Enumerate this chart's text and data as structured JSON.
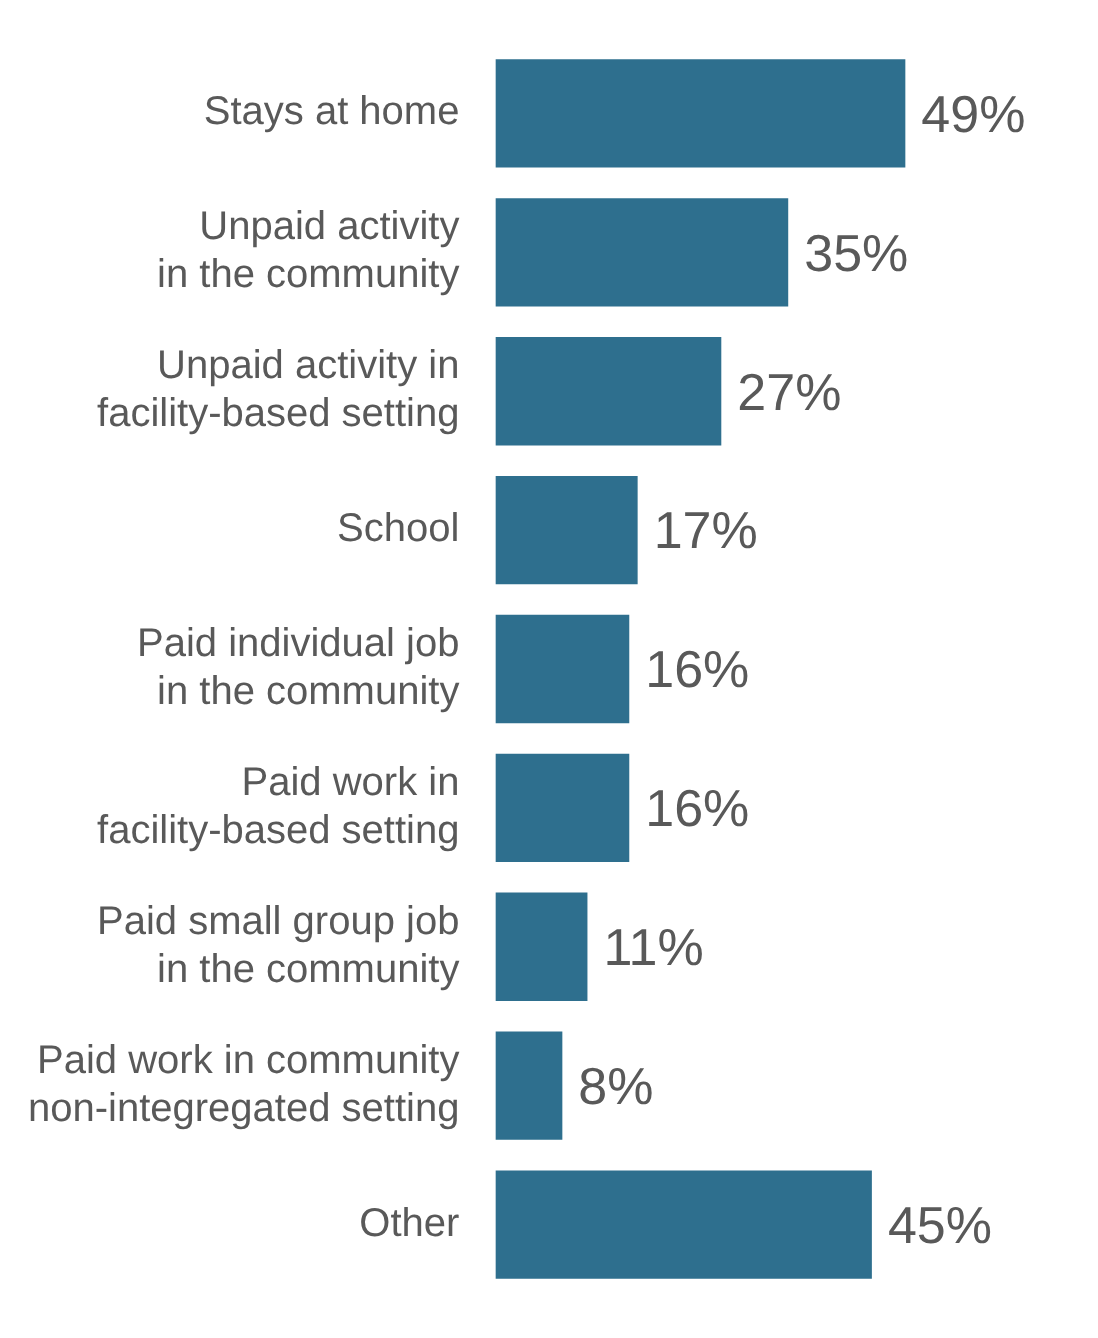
{
  "chart_data": {
    "type": "bar",
    "orientation": "horizontal",
    "categories": [
      "Stays at home",
      "Unpaid activity\nin the community",
      "Unpaid activity in\nfacility-based setting",
      "School",
      "Paid individual job\nin the community",
      "Paid work in\nfacility-based setting",
      "Paid small group job\nin the community",
      "Paid work in community\nnon-integregated setting",
      "Other"
    ],
    "values": [
      49,
      35,
      27,
      17,
      16,
      16,
      11,
      8,
      45
    ],
    "value_labels": [
      "49%",
      "35%",
      "27%",
      "17%",
      "16%",
      "16%",
      "11%",
      "8%",
      "45%"
    ],
    "color": "#2e6f8e",
    "legend": false
  }
}
